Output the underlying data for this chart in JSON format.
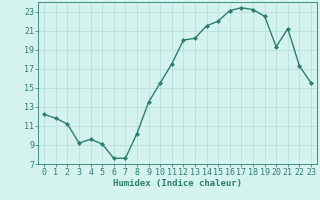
{
  "x": [
    0,
    1,
    2,
    3,
    4,
    5,
    6,
    7,
    8,
    9,
    10,
    11,
    12,
    13,
    14,
    15,
    16,
    17,
    18,
    19,
    20,
    21,
    22,
    23
  ],
  "y": [
    12.2,
    11.8,
    11.2,
    9.2,
    9.6,
    9.1,
    7.6,
    7.6,
    10.2,
    13.5,
    15.5,
    17.5,
    20.0,
    20.2,
    21.5,
    22.0,
    23.1,
    23.4,
    23.2,
    22.5,
    19.3,
    21.2,
    17.3,
    15.5
  ],
  "line_color": "#2e7d6e",
  "marker": "D",
  "marker_size": 2.0,
  "bg_color": "#d4f3ee",
  "grid_color": "#b8e0da",
  "xlabel": "Humidex (Indice chaleur)",
  "xlim": [
    -0.5,
    23.5
  ],
  "ylim": [
    7,
    24
  ],
  "yticks": [
    7,
    9,
    11,
    13,
    15,
    17,
    19,
    21,
    23
  ],
  "xticks": [
    0,
    1,
    2,
    3,
    4,
    5,
    6,
    7,
    8,
    9,
    10,
    11,
    12,
    13,
    14,
    15,
    16,
    17,
    18,
    19,
    20,
    21,
    22,
    23
  ],
  "xlabel_fontsize": 6.5,
  "tick_fontsize": 6.0,
  "line_width": 1.0
}
